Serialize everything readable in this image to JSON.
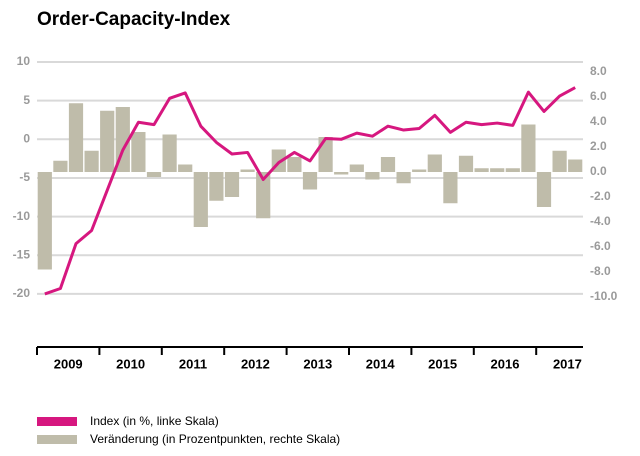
{
  "chart_data": {
    "type": "bar-line",
    "title": "Order-Capacity-Index",
    "categories": [
      null,
      null,
      null,
      null,
      null,
      null,
      null,
      null,
      null,
      null,
      null,
      null,
      null,
      null,
      null,
      null,
      null,
      null,
      null,
      null,
      null,
      null,
      null,
      null,
      null,
      null,
      null,
      null,
      null,
      null,
      null,
      null,
      null,
      null,
      null
    ],
    "year_labels": [
      "2009",
      "2010",
      "2011",
      "2012",
      "2013",
      "2014",
      "2015",
      "2016",
      "2017"
    ],
    "series": [
      {
        "name": "Veränderung (in Prozentpunkten, rechte Skala)",
        "color": "#bfbcaa",
        "axis": "y2",
        "kind": "bar",
        "values": [
          -7.8,
          0.9,
          5.5,
          1.7,
          4.9,
          5.2,
          3.2,
          -0.4,
          3.0,
          0.6,
          -4.4,
          -2.3,
          -2.0,
          0.2,
          -3.7,
          1.8,
          1.2,
          -1.4,
          2.8,
          -0.2,
          0.6,
          -0.6,
          1.2,
          -0.9,
          0.2,
          1.4,
          -2.5,
          1.3,
          0.3,
          0.3,
          0.3,
          3.8,
          -2.8,
          1.7,
          1.0
        ]
      },
      {
        "name": "Index (in %, linke Skala)",
        "color": "#d6177f",
        "axis": "y",
        "kind": "line",
        "values": [
          -20.0,
          -19.3,
          -13.5,
          -11.8,
          -6.6,
          -1.4,
          2.2,
          1.9,
          5.3,
          6.0,
          1.7,
          -0.4,
          -1.9,
          -1.7,
          -5.2,
          -3.0,
          -1.7,
          -2.8,
          0.1,
          0.0,
          0.8,
          0.4,
          1.7,
          1.2,
          1.4,
          3.1,
          0.9,
          2.2,
          1.9,
          2.1,
          1.8,
          6.1,
          3.6,
          5.6,
          6.7
        ]
      }
    ],
    "ylim": [
      -20.4,
      10
    ],
    "yticks": [
      -20,
      -15,
      -10,
      -5,
      0,
      5,
      10
    ],
    "y2lim": [
      -10,
      8.8
    ],
    "y2ticks": [
      {
        "value": -10,
        "label": "-10.0"
      },
      {
        "value": -8,
        "label": "-8.0"
      },
      {
        "value": -6,
        "label": "-6.0"
      },
      {
        "value": -4,
        "label": "-4.0"
      },
      {
        "value": -2,
        "label": "-2.0"
      },
      {
        "value": 0,
        "label": "0.0"
      },
      {
        "value": 2,
        "label": "2.0"
      },
      {
        "value": 4,
        "label": "4.0"
      },
      {
        "value": 6,
        "label": "6.0"
      },
      {
        "value": 8,
        "label": "8.0"
      }
    ],
    "grid": true,
    "legend": "bottom-left"
  }
}
